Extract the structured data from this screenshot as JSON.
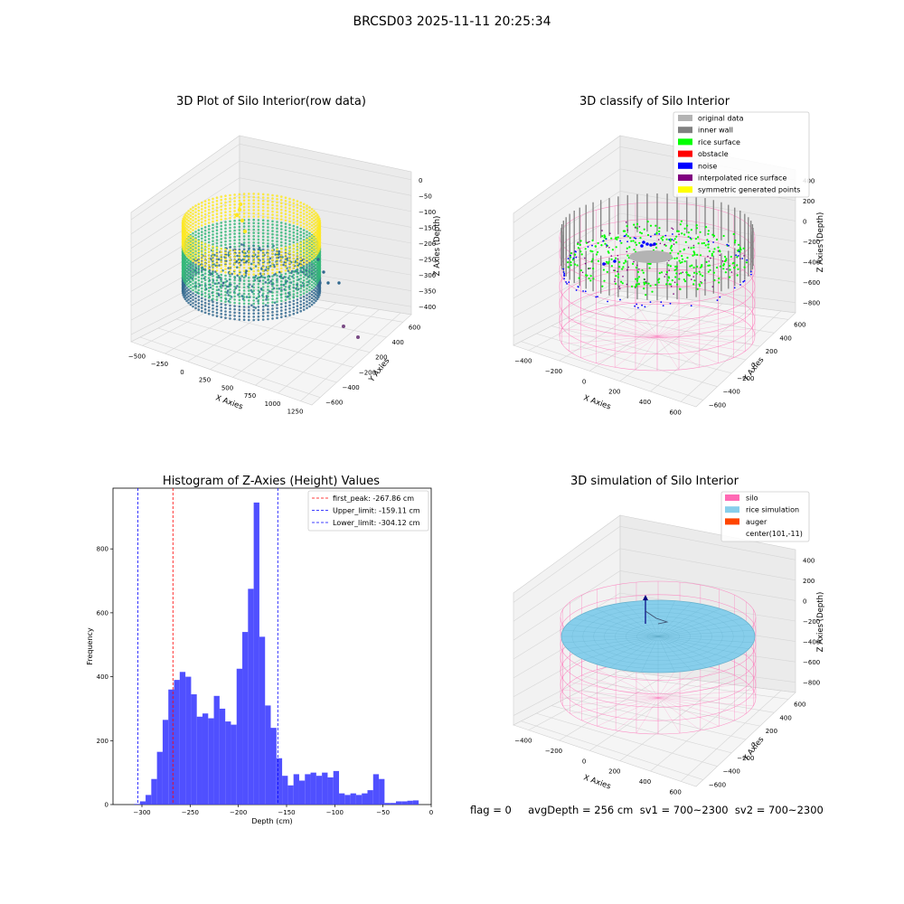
{
  "suptitle": "BRCSD03 2025-11-11 20:25:34",
  "status_line": "flag = 0     avgDepth = 256 cm  sv1 = 700~2300  sv2 = 700~2300",
  "panels": {
    "raw": {
      "title": "3D Plot of Silo Interior(row data)",
      "xlabel": "X Axies",
      "ylabel": "Y Axies",
      "zlabel": "Z Axies (Depth)",
      "xticks": [
        "−500",
        "−250",
        "0",
        "250",
        "500",
        "750",
        "1000",
        "1250"
      ],
      "yticks": [
        "600",
        "400",
        "200",
        "−200",
        "−400",
        "−600"
      ],
      "zticks": [
        "0",
        "−50",
        "−100",
        "−150",
        "−200",
        "−250",
        "−300",
        "−350",
        "−400"
      ],
      "colormap": [
        "#440154",
        "#31688e",
        "#35b779",
        "#fde725"
      ]
    },
    "classify": {
      "title": "3D classify of Silo Interior",
      "xlabel": "X Axies",
      "ylabel": "Y Axies",
      "zlabel": "Z Axies (Depth)",
      "xticks": [
        "−400",
        "−200",
        "0",
        "200",
        "400",
        "600"
      ],
      "yticks": [
        "600",
        "400",
        "200",
        "0",
        "−200",
        "−400",
        "−600"
      ],
      "zticks": [
        "400",
        "200",
        "0",
        "−200",
        "−400",
        "−600",
        "−800"
      ],
      "legend": [
        {
          "label": "original data",
          "color": "#b3b3b3"
        },
        {
          "label": "inner wall",
          "color": "#808080"
        },
        {
          "label": "rice surface",
          "color": "#00ff00"
        },
        {
          "label": "obstacle",
          "color": "#ff0000"
        },
        {
          "label": "noise",
          "color": "#0000ff"
        },
        {
          "label": "interpolated rice surface",
          "color": "#800080"
        },
        {
          "label": "symmetric generated points",
          "color": "#ffff00"
        }
      ],
      "silo_color": "#ff69b4"
    },
    "simulation": {
      "title": "3D simulation of Silo Interior",
      "xlabel": "X Axies",
      "ylabel": "Y Axies",
      "zlabel": "Z Axies (Depth)",
      "xticks": [
        "−400",
        "−200",
        "0",
        "200",
        "400",
        "600"
      ],
      "yticks": [
        "600",
        "400",
        "200",
        "0",
        "−200",
        "−400",
        "−600"
      ],
      "zticks": [
        "400",
        "200",
        "0",
        "−200",
        "−400",
        "−600",
        "−800"
      ],
      "legend": [
        {
          "label": "silo",
          "color": "#ff69b4"
        },
        {
          "label": "rice simulation",
          "color": "#87ceeb"
        },
        {
          "label": "auger",
          "color": "#ff4500"
        },
        {
          "label": "center(101,-11)",
          "color": ""
        }
      ]
    }
  },
  "chart_data": [
    {
      "type": "bar",
      "title": "Histogram of Z-Axies (Height) Values",
      "xlabel": "Depth (cm)",
      "ylabel": "Frequency",
      "bar_color": "#4747ff",
      "bin_start": -308,
      "bin_width": 5.9,
      "values": [
        2,
        10,
        30,
        80,
        165,
        265,
        360,
        390,
        415,
        400,
        345,
        275,
        285,
        270,
        340,
        300,
        260,
        250,
        425,
        540,
        675,
        945,
        525,
        310,
        240,
        145,
        90,
        60,
        95,
        75,
        95,
        100,
        90,
        100,
        85,
        105,
        35,
        30,
        35,
        30,
        35,
        45,
        95,
        80,
        5,
        5,
        10,
        10,
        12,
        13
      ],
      "xlim": [
        -330,
        0
      ],
      "ylim": [
        0,
        990
      ],
      "xticks": [
        -300,
        -250,
        -200,
        -150,
        -100,
        -50,
        0
      ],
      "yticks": [
        0,
        200,
        400,
        600,
        800
      ],
      "vlines": [
        {
          "label": "first_peak: -267.86 cm",
          "x": -267.86,
          "color": "#ff0000"
        },
        {
          "label": "Upper_limit: -159.11 cm",
          "x": -159.11,
          "color": "#0000ff"
        },
        {
          "label": "Lower_limit: -304.12 cm",
          "x": -304.12,
          "color": "#0000ff"
        }
      ],
      "legend_position": "upper right",
      "grid": false
    }
  ]
}
